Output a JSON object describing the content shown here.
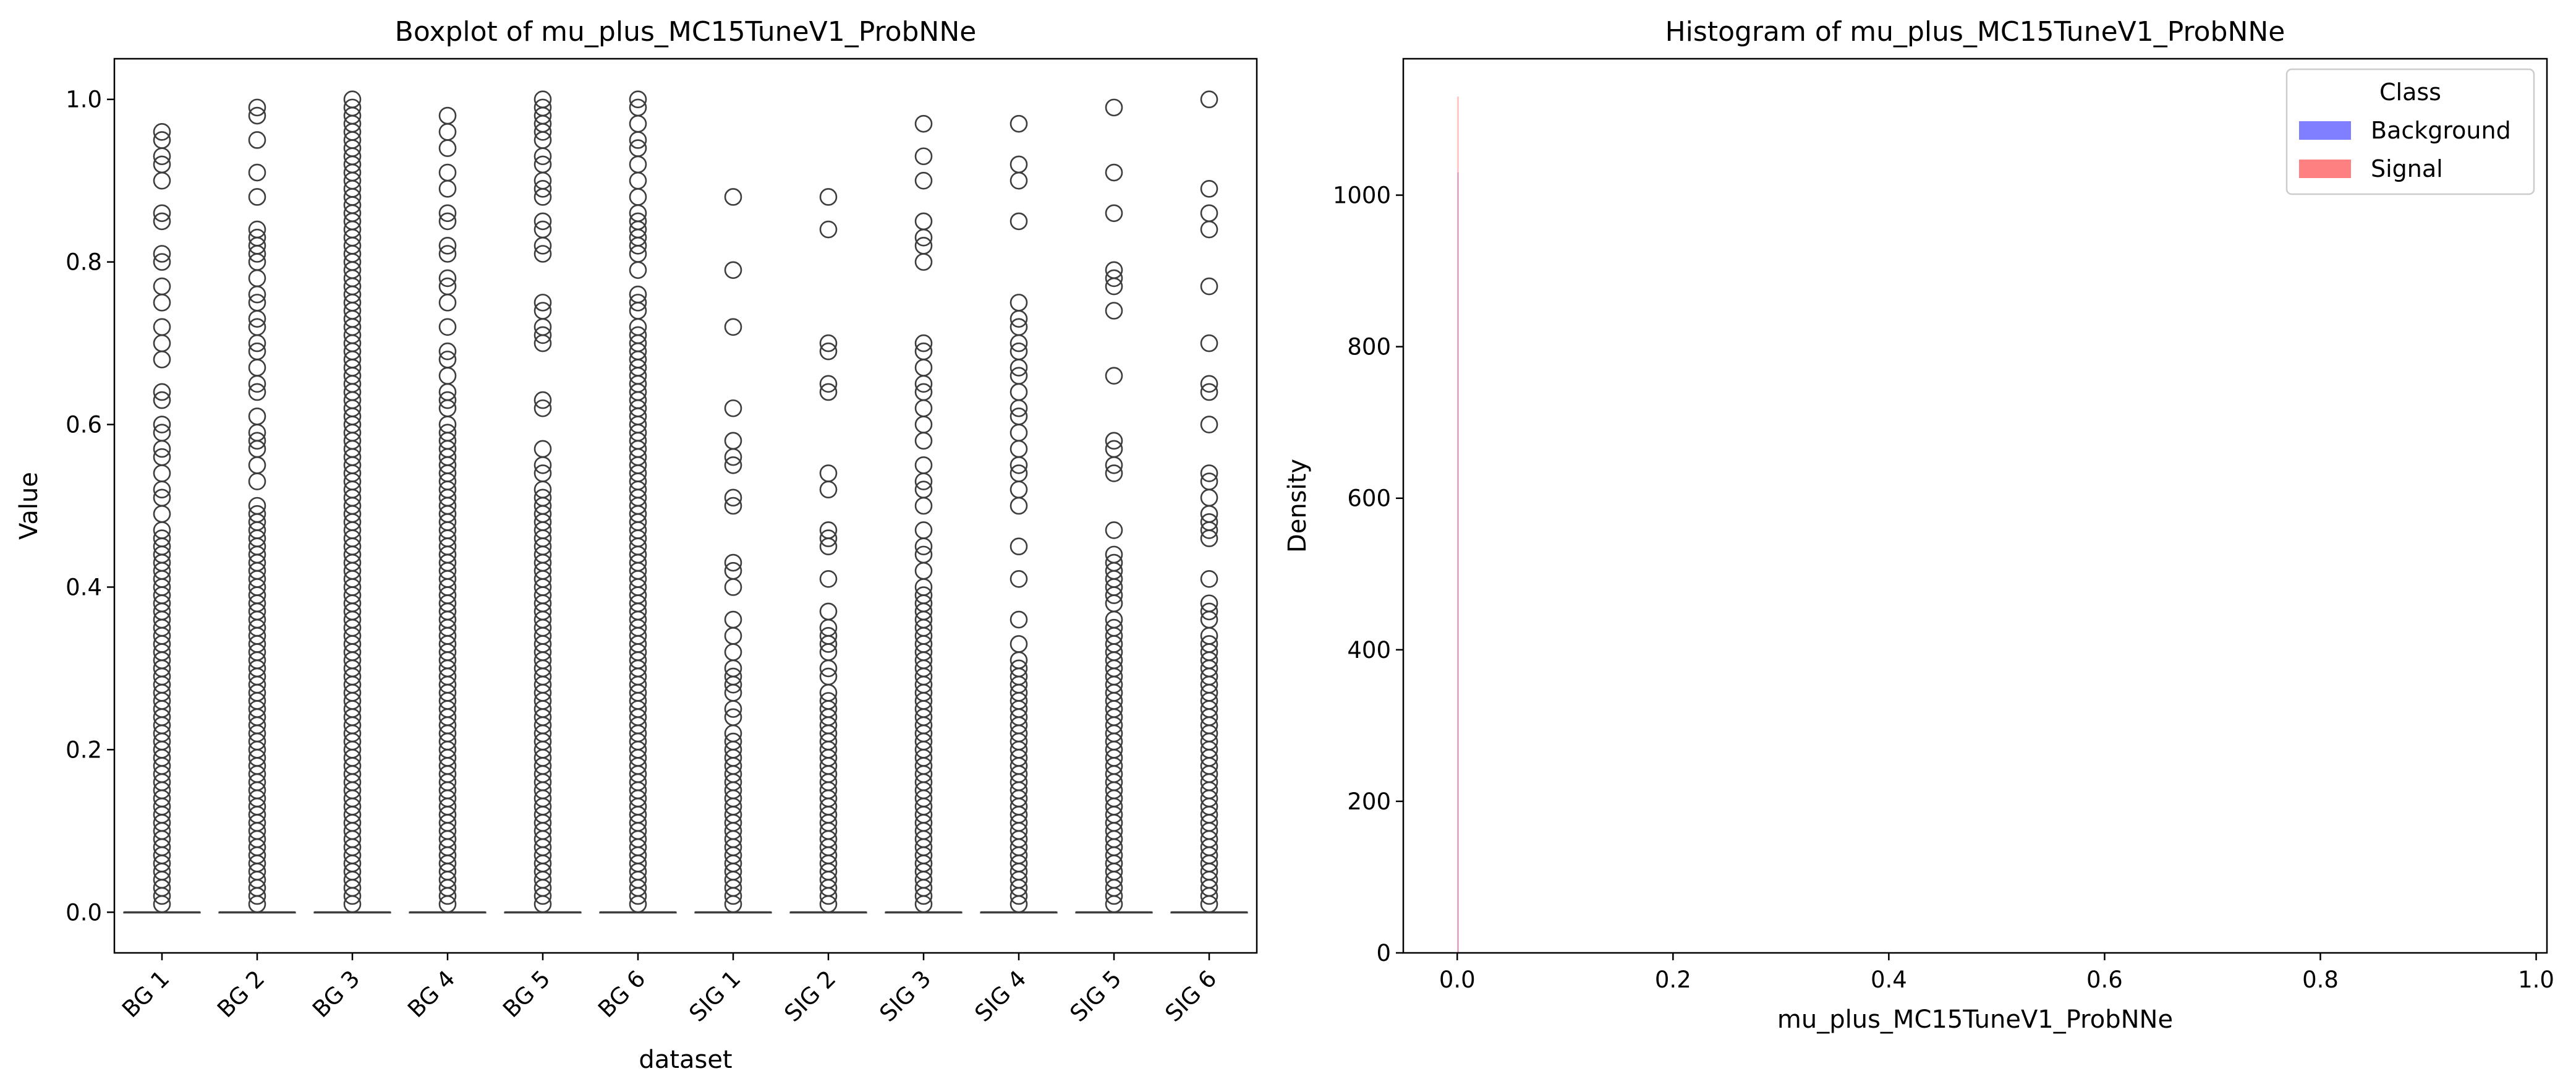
{
  "chart_data": [
    {
      "type": "boxplot",
      "title": "Boxplot of mu_plus_MC15TuneV1_ProbNNe",
      "xlabel": "dataset",
      "ylabel": "Value",
      "ylim": [
        -0.05,
        1.05
      ],
      "yticks": [
        "0.0",
        "0.2",
        "0.4",
        "0.6",
        "0.8",
        "1.0"
      ],
      "ytick_values": [
        0,
        0.2,
        0.4,
        0.6,
        0.8,
        1.0
      ],
      "grid": false,
      "categories": [
        "BG 1",
        "BG 2",
        "BG 3",
        "BG 4",
        "BG 5",
        "BG 6",
        "SIG 1",
        "SIG 2",
        "SIG 3",
        "SIG 4",
        "SIG 5",
        "SIG 6"
      ],
      "boxes": [
        {
          "median": 0.0,
          "q1": 0.0,
          "q3": 0.0,
          "outliers": [
            0.96,
            0.95,
            0.93,
            0.92,
            0.9,
            0.86,
            0.85,
            0.81,
            0.8,
            0.77,
            0.75,
            0.72,
            0.7,
            0.68,
            0.64,
            0.63,
            0.6,
            0.59,
            0.57,
            0.56,
            0.54,
            0.52,
            0.51,
            0.49,
            0.47,
            0.46,
            0.45,
            0.44,
            0.43,
            0.42,
            0.41,
            0.4,
            0.39,
            0.38,
            0.37,
            0.36,
            0.35,
            0.34,
            0.33,
            0.32,
            0.31,
            0.3,
            0.29,
            0.28,
            0.27,
            0.26,
            0.25,
            0.24,
            0.23,
            0.22,
            0.21,
            0.2,
            0.19,
            0.18,
            0.17,
            0.16,
            0.15,
            0.14,
            0.13,
            0.12,
            0.11,
            0.1,
            0.09,
            0.08,
            0.07,
            0.06,
            0.05,
            0.04,
            0.03,
            0.02,
            0.01
          ]
        },
        {
          "median": 0.0,
          "q1": 0.0,
          "q3": 0.0,
          "outliers": [
            0.99,
            0.98,
            0.95,
            0.91,
            0.88,
            0.84,
            0.83,
            0.82,
            0.81,
            0.8,
            0.78,
            0.76,
            0.75,
            0.73,
            0.72,
            0.7,
            0.69,
            0.67,
            0.65,
            0.64,
            0.61,
            0.59,
            0.58,
            0.57,
            0.55,
            0.53,
            0.5,
            0.49,
            0.48,
            0.47,
            0.46,
            0.45,
            0.44,
            0.43,
            0.42,
            0.41,
            0.4,
            0.39,
            0.38,
            0.37,
            0.36,
            0.35,
            0.34,
            0.33,
            0.32,
            0.31,
            0.3,
            0.29,
            0.28,
            0.27,
            0.26,
            0.25,
            0.24,
            0.23,
            0.22,
            0.21,
            0.2,
            0.19,
            0.18,
            0.17,
            0.16,
            0.15,
            0.14,
            0.13,
            0.12,
            0.11,
            0.1,
            0.09,
            0.08,
            0.07,
            0.06,
            0.05,
            0.04,
            0.03,
            0.02,
            0.01
          ]
        },
        {
          "median": 0.0,
          "q1": 0.0,
          "q3": 0.0,
          "outliers": [
            1.0,
            0.99,
            0.98,
            0.97,
            0.96,
            0.95,
            0.94,
            0.93,
            0.92,
            0.91,
            0.9,
            0.89,
            0.88,
            0.87,
            0.86,
            0.85,
            0.84,
            0.83,
            0.82,
            0.81,
            0.8,
            0.79,
            0.78,
            0.77,
            0.76,
            0.75,
            0.74,
            0.73,
            0.72,
            0.71,
            0.7,
            0.69,
            0.68,
            0.67,
            0.66,
            0.65,
            0.64,
            0.63,
            0.62,
            0.61,
            0.6,
            0.59,
            0.58,
            0.57,
            0.56,
            0.55,
            0.54,
            0.53,
            0.52,
            0.51,
            0.5,
            0.49,
            0.48,
            0.47,
            0.46,
            0.45,
            0.44,
            0.43,
            0.42,
            0.41,
            0.4,
            0.39,
            0.38,
            0.37,
            0.36,
            0.35,
            0.34,
            0.33,
            0.32,
            0.31,
            0.3,
            0.29,
            0.28,
            0.27,
            0.26,
            0.25,
            0.24,
            0.23,
            0.22,
            0.21,
            0.2,
            0.19,
            0.18,
            0.17,
            0.16,
            0.15,
            0.14,
            0.13,
            0.12,
            0.11,
            0.1,
            0.09,
            0.08,
            0.07,
            0.06,
            0.05,
            0.04,
            0.03,
            0.02,
            0.01
          ]
        },
        {
          "median": 0.0,
          "q1": 0.0,
          "q3": 0.0,
          "outliers": [
            0.98,
            0.96,
            0.94,
            0.91,
            0.89,
            0.86,
            0.85,
            0.82,
            0.81,
            0.78,
            0.77,
            0.75,
            0.72,
            0.69,
            0.68,
            0.66,
            0.64,
            0.63,
            0.62,
            0.6,
            0.59,
            0.58,
            0.57,
            0.56,
            0.55,
            0.54,
            0.53,
            0.52,
            0.51,
            0.5,
            0.49,
            0.48,
            0.47,
            0.46,
            0.45,
            0.44,
            0.43,
            0.42,
            0.41,
            0.4,
            0.39,
            0.38,
            0.37,
            0.36,
            0.35,
            0.34,
            0.33,
            0.32,
            0.31,
            0.3,
            0.29,
            0.28,
            0.27,
            0.26,
            0.25,
            0.24,
            0.23,
            0.22,
            0.21,
            0.2,
            0.19,
            0.18,
            0.17,
            0.16,
            0.15,
            0.14,
            0.13,
            0.12,
            0.11,
            0.1,
            0.09,
            0.08,
            0.07,
            0.06,
            0.05,
            0.04,
            0.03,
            0.02,
            0.01
          ]
        },
        {
          "median": 0.0,
          "q1": 0.0,
          "q3": 0.0,
          "outliers": [
            1.0,
            0.99,
            0.98,
            0.97,
            0.96,
            0.95,
            0.93,
            0.92,
            0.9,
            0.89,
            0.88,
            0.85,
            0.84,
            0.82,
            0.81,
            0.75,
            0.74,
            0.72,
            0.71,
            0.7,
            0.63,
            0.62,
            0.57,
            0.55,
            0.54,
            0.52,
            0.51,
            0.5,
            0.49,
            0.48,
            0.47,
            0.46,
            0.45,
            0.44,
            0.43,
            0.42,
            0.41,
            0.4,
            0.39,
            0.38,
            0.37,
            0.36,
            0.35,
            0.34,
            0.33,
            0.32,
            0.31,
            0.3,
            0.29,
            0.28,
            0.27,
            0.26,
            0.25,
            0.24,
            0.23,
            0.22,
            0.21,
            0.2,
            0.19,
            0.18,
            0.17,
            0.16,
            0.15,
            0.14,
            0.13,
            0.12,
            0.11,
            0.1,
            0.09,
            0.08,
            0.07,
            0.06,
            0.05,
            0.04,
            0.03,
            0.02,
            0.01
          ]
        },
        {
          "median": 0.0,
          "q1": 0.0,
          "q3": 0.0,
          "outliers": [
            1.0,
            0.99,
            0.97,
            0.95,
            0.94,
            0.92,
            0.9,
            0.88,
            0.86,
            0.85,
            0.84,
            0.83,
            0.82,
            0.81,
            0.79,
            0.76,
            0.75,
            0.74,
            0.72,
            0.71,
            0.7,
            0.69,
            0.68,
            0.67,
            0.66,
            0.65,
            0.64,
            0.63,
            0.62,
            0.61,
            0.6,
            0.59,
            0.58,
            0.57,
            0.56,
            0.55,
            0.54,
            0.53,
            0.52,
            0.51,
            0.5,
            0.49,
            0.48,
            0.47,
            0.46,
            0.45,
            0.44,
            0.43,
            0.42,
            0.41,
            0.4,
            0.39,
            0.38,
            0.37,
            0.36,
            0.35,
            0.34,
            0.33,
            0.32,
            0.31,
            0.3,
            0.29,
            0.28,
            0.27,
            0.26,
            0.25,
            0.24,
            0.23,
            0.22,
            0.21,
            0.2,
            0.19,
            0.18,
            0.17,
            0.16,
            0.15,
            0.14,
            0.13,
            0.12,
            0.11,
            0.1,
            0.09,
            0.08,
            0.07,
            0.06,
            0.05,
            0.04,
            0.03,
            0.02,
            0.01
          ]
        },
        {
          "median": 0.0,
          "q1": 0.0,
          "q3": 0.0,
          "outliers": [
            0.88,
            0.79,
            0.72,
            0.62,
            0.58,
            0.56,
            0.55,
            0.51,
            0.5,
            0.43,
            0.42,
            0.4,
            0.36,
            0.34,
            0.32,
            0.3,
            0.29,
            0.28,
            0.27,
            0.25,
            0.24,
            0.22,
            0.21,
            0.2,
            0.19,
            0.18,
            0.17,
            0.16,
            0.15,
            0.14,
            0.13,
            0.12,
            0.11,
            0.1,
            0.09,
            0.08,
            0.07,
            0.06,
            0.05,
            0.04,
            0.03,
            0.02,
            0.01
          ]
        },
        {
          "median": 0.0,
          "q1": 0.0,
          "q3": 0.0,
          "outliers": [
            0.88,
            0.84,
            0.7,
            0.69,
            0.65,
            0.64,
            0.54,
            0.52,
            0.47,
            0.46,
            0.45,
            0.41,
            0.37,
            0.35,
            0.34,
            0.33,
            0.32,
            0.3,
            0.29,
            0.27,
            0.26,
            0.25,
            0.24,
            0.23,
            0.22,
            0.21,
            0.2,
            0.19,
            0.18,
            0.17,
            0.16,
            0.15,
            0.14,
            0.13,
            0.12,
            0.11,
            0.1,
            0.09,
            0.08,
            0.07,
            0.06,
            0.05,
            0.04,
            0.03,
            0.02,
            0.01
          ]
        },
        {
          "median": 0.0,
          "q1": 0.0,
          "q3": 0.0,
          "outliers": [
            0.97,
            0.93,
            0.9,
            0.85,
            0.83,
            0.82,
            0.8,
            0.7,
            0.69,
            0.67,
            0.65,
            0.64,
            0.62,
            0.6,
            0.58,
            0.55,
            0.53,
            0.52,
            0.5,
            0.47,
            0.45,
            0.44,
            0.42,
            0.4,
            0.39,
            0.38,
            0.37,
            0.36,
            0.35,
            0.34,
            0.33,
            0.32,
            0.31,
            0.3,
            0.29,
            0.28,
            0.27,
            0.26,
            0.25,
            0.24,
            0.23,
            0.22,
            0.21,
            0.2,
            0.19,
            0.18,
            0.17,
            0.16,
            0.15,
            0.14,
            0.13,
            0.12,
            0.11,
            0.1,
            0.09,
            0.08,
            0.07,
            0.06,
            0.05,
            0.04,
            0.03,
            0.02,
            0.01
          ]
        },
        {
          "median": 0.0,
          "q1": 0.0,
          "q3": 0.0,
          "outliers": [
            0.97,
            0.92,
            0.9,
            0.85,
            0.75,
            0.73,
            0.72,
            0.7,
            0.69,
            0.67,
            0.66,
            0.64,
            0.62,
            0.61,
            0.59,
            0.57,
            0.55,
            0.54,
            0.52,
            0.5,
            0.45,
            0.41,
            0.36,
            0.33,
            0.31,
            0.3,
            0.29,
            0.28,
            0.27,
            0.26,
            0.25,
            0.24,
            0.23,
            0.22,
            0.21,
            0.2,
            0.19,
            0.18,
            0.17,
            0.16,
            0.15,
            0.14,
            0.13,
            0.12,
            0.11,
            0.1,
            0.09,
            0.08,
            0.07,
            0.06,
            0.05,
            0.04,
            0.03,
            0.02,
            0.01
          ]
        },
        {
          "median": 0.0,
          "q1": 0.0,
          "q3": 0.0,
          "outliers": [
            0.99,
            0.91,
            0.86,
            0.79,
            0.78,
            0.77,
            0.74,
            0.66,
            0.58,
            0.57,
            0.55,
            0.54,
            0.47,
            0.44,
            0.43,
            0.42,
            0.41,
            0.4,
            0.39,
            0.38,
            0.36,
            0.35,
            0.34,
            0.33,
            0.32,
            0.31,
            0.3,
            0.29,
            0.28,
            0.27,
            0.26,
            0.25,
            0.24,
            0.23,
            0.22,
            0.21,
            0.2,
            0.19,
            0.18,
            0.17,
            0.16,
            0.15,
            0.14,
            0.13,
            0.12,
            0.11,
            0.1,
            0.09,
            0.08,
            0.07,
            0.06,
            0.05,
            0.04,
            0.03,
            0.02,
            0.01
          ]
        },
        {
          "median": 0.0,
          "q1": 0.0,
          "q3": 0.0,
          "outliers": [
            1.0,
            0.89,
            0.86,
            0.84,
            0.77,
            0.7,
            0.65,
            0.64,
            0.6,
            0.54,
            0.53,
            0.51,
            0.49,
            0.48,
            0.47,
            0.46,
            0.41,
            0.38,
            0.37,
            0.36,
            0.34,
            0.33,
            0.32,
            0.31,
            0.3,
            0.29,
            0.28,
            0.27,
            0.26,
            0.25,
            0.24,
            0.23,
            0.22,
            0.21,
            0.2,
            0.19,
            0.18,
            0.17,
            0.16,
            0.15,
            0.14,
            0.13,
            0.12,
            0.11,
            0.1,
            0.09,
            0.08,
            0.07,
            0.06,
            0.05,
            0.04,
            0.03,
            0.02,
            0.01
          ]
        }
      ]
    },
    {
      "type": "histogram",
      "title": "Histogram of mu_plus_MC15TuneV1_ProbNNe",
      "xlabel": "mu_plus_MC15TuneV1_ProbNNe",
      "ylabel": "Density",
      "xlim": [
        -0.05,
        1.01
      ],
      "ylim": [
        0,
        1180
      ],
      "xticks": [
        "0.0",
        "0.2",
        "0.4",
        "0.6",
        "0.8",
        "1.0"
      ],
      "xtick_values": [
        0,
        0.2,
        0.4,
        0.6,
        0.8,
        1.0
      ],
      "yticks": [
        "0",
        "200",
        "400",
        "600",
        "800",
        "1000"
      ],
      "ytick_values": [
        0,
        200,
        400,
        600,
        800,
        1000
      ],
      "grid": false,
      "legend": {
        "title": "Class",
        "placement": "top-right"
      },
      "series": [
        {
          "name": "Background",
          "color": "#7f7fff",
          "bins": [
            {
              "x0": 0.0,
              "x1": 0.001,
              "density": 1030
            }
          ]
        },
        {
          "name": "Signal",
          "color": "#ff8080",
          "bins": [
            {
              "x0": 0.0,
              "x1": 0.001,
              "density": 1130
            }
          ]
        }
      ]
    }
  ]
}
